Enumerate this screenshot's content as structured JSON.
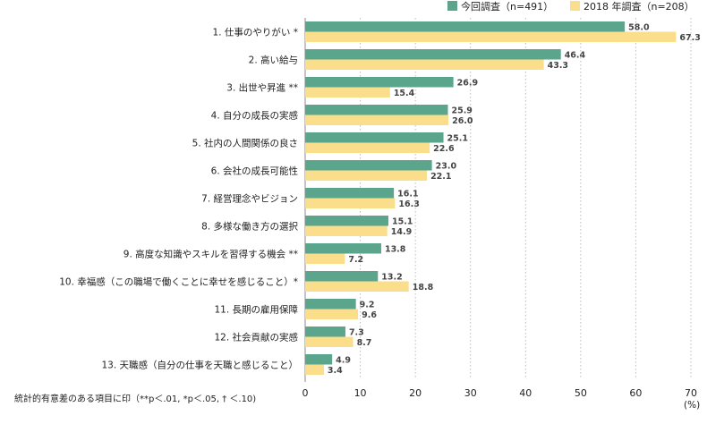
{
  "legend": [
    {
      "label": "今回調査（n=491）",
      "color": "#5aa58b"
    },
    {
      "label": "2018 年調査（n=208）",
      "color": "#fbde8c"
    }
  ],
  "footnote": "統計的有意差のある項目に印（**p＜.01, *p＜.05, † ＜.10)",
  "unit_label": "(%)",
  "chart_data": {
    "type": "bar",
    "orientation": "horizontal",
    "categories": [
      "1. 仕事のやりがい *",
      "2. 高い給与",
      "3. 出世や昇進 **",
      "4. 自分の成長の実感",
      "5. 社内の人間関係の良さ",
      "6. 会社の成長可能性",
      "7. 経営理念やビジョン",
      "8. 多様な働き方の選択",
      "9. 高度な知識やスキルを習得する機会 **",
      "10. 幸福感（この職場で働くことに幸せを感じること）*",
      "11. 長期の雇用保障",
      "12. 社会貢献の実感",
      "13. 天職感（自分の仕事を天職と感じること）"
    ],
    "series": [
      {
        "name": "今回調査（n=491）",
        "color": "#5aa58b",
        "values": [
          58.0,
          46.4,
          26.9,
          25.9,
          25.1,
          23.0,
          16.1,
          15.1,
          13.8,
          13.2,
          9.2,
          7.3,
          4.9
        ],
        "labels": [
          "58.0",
          "46.4",
          "26.9",
          "25.9",
          "25.1",
          "23.0",
          "16.1",
          "15.1",
          "13.8",
          "13.2",
          "9.2",
          "7.3",
          "4.9"
        ]
      },
      {
        "name": "2018 年調査（n=208）",
        "color": "#fbde8c",
        "values": [
          67.3,
          43.3,
          15.4,
          26.0,
          22.6,
          22.1,
          16.3,
          14.9,
          7.2,
          18.8,
          9.6,
          8.7,
          3.4
        ],
        "labels": [
          "67.3",
          "43.3",
          "15.4",
          "26.0",
          "22.6",
          "22.1",
          "16.3",
          "14.9",
          "7.2",
          "18.8",
          "9.6",
          "8.7",
          "3.4"
        ]
      }
    ],
    "xlim": [
      0,
      70
    ],
    "xticks": [
      "0",
      "10",
      "20",
      "30",
      "40",
      "50",
      "60",
      "70"
    ],
    "grid": "vertical-dotted",
    "legend_position": "top-right"
  }
}
